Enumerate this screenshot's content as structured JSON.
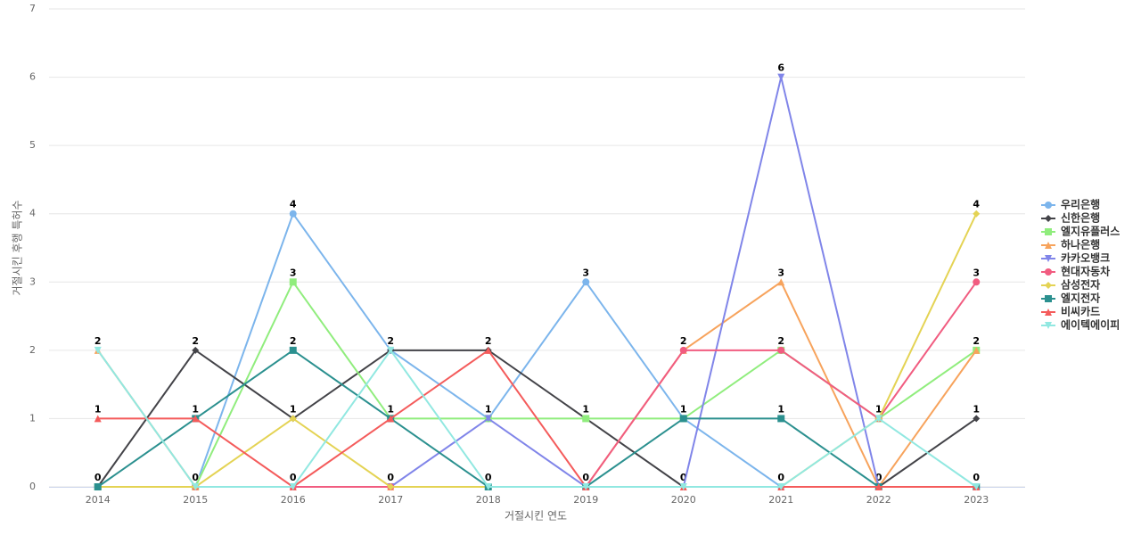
{
  "chart_data": {
    "type": "line",
    "x_label": "거절시킨 연도",
    "y_label": "거절시킨 후행 특허수",
    "categories": [
      "2014",
      "2015",
      "2016",
      "2017",
      "2018",
      "2019",
      "2020",
      "2021",
      "2022",
      "2023"
    ],
    "ylim": [
      0,
      7
    ],
    "yticks": [
      0,
      1,
      2,
      3,
      4,
      5,
      6,
      7
    ],
    "grid": true,
    "legend": "right",
    "series": [
      {
        "name": "우리은행",
        "color": "#7cb5ec",
        "marker": "circle",
        "values": [
          0,
          0,
          4,
          2,
          1,
          3,
          1,
          0,
          0,
          0
        ]
      },
      {
        "name": "신한은행",
        "color": "#434348",
        "marker": "diamond",
        "values": [
          0,
          2,
          1,
          2,
          2,
          1,
          0,
          0,
          0,
          1
        ]
      },
      {
        "name": "엘지유플러스",
        "color": "#90ed7d",
        "marker": "square",
        "values": [
          0,
          0,
          3,
          1,
          1,
          1,
          1,
          2,
          1,
          2
        ]
      },
      {
        "name": "하나은행",
        "color": "#f7a35c",
        "marker": "triangle",
        "values": [
          2,
          0,
          0,
          0,
          0,
          0,
          2,
          3,
          0,
          2
        ]
      },
      {
        "name": "카카오뱅크",
        "color": "#8085e9",
        "marker": "triangle-down",
        "values": [
          0,
          0,
          0,
          0,
          1,
          0,
          0,
          6,
          0,
          0
        ]
      },
      {
        "name": "현대자동차",
        "color": "#f15c80",
        "marker": "circle",
        "values": [
          0,
          0,
          0,
          0,
          0,
          0,
          2,
          2,
          1,
          3
        ]
      },
      {
        "name": "삼성전자",
        "color": "#e4d354",
        "marker": "diamond",
        "values": [
          0,
          0,
          1,
          0,
          0,
          0,
          0,
          0,
          1,
          4
        ]
      },
      {
        "name": "엘지전자",
        "color": "#2b908f",
        "marker": "square",
        "values": [
          0,
          1,
          2,
          1,
          0,
          0,
          1,
          1,
          0,
          0
        ]
      },
      {
        "name": "비씨카드",
        "color": "#f45b5b",
        "marker": "triangle",
        "values": [
          1,
          1,
          0,
          1,
          2,
          0,
          0,
          0,
          0,
          0
        ]
      },
      {
        "name": "에이텍에이피",
        "color": "#91e8e1",
        "marker": "triangle-down",
        "values": [
          2,
          0,
          0,
          2,
          0,
          0,
          0,
          0,
          1,
          0
        ]
      }
    ]
  }
}
